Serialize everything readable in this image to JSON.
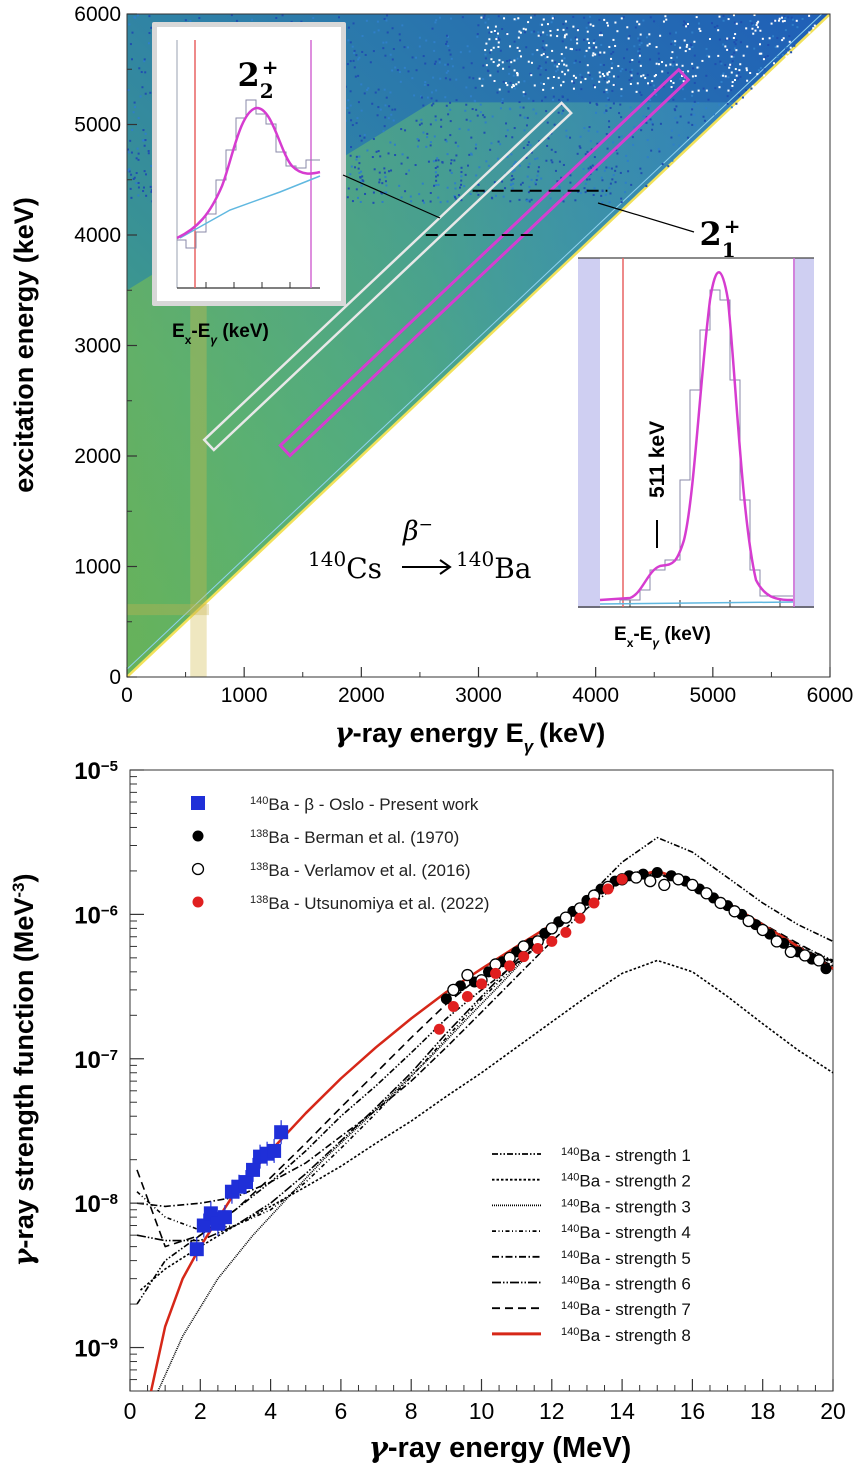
{
  "chart_data": [
    {
      "type": "heatmap",
      "xlabel": "γ-ray energy E",
      "xlabel_sub": "γ",
      "xlabel_unit": "(keV)",
      "ylabel": "excitation energy (keV)",
      "xlim": [
        0,
        6000
      ],
      "ylim": [
        0,
        6000
      ],
      "xticks": [
        "0",
        "1000",
        "2000",
        "3000",
        "4000",
        "5000",
        "6000"
      ],
      "yticks": [
        "0",
        "1000",
        "2000",
        "3000",
        "4000",
        "5000",
        "6000"
      ],
      "gates": [
        {
          "name": "2_2+ gate",
          "color": "#e8e8e8",
          "from": [
            700,
            2100
          ],
          "to": [
            3750,
            5150
          ]
        },
        {
          "name": "2_1+ gate",
          "color": "#d43fd0",
          "from": [
            1350,
            2050
          ],
          "to": [
            4750,
            5450
          ]
        }
      ],
      "dashed_lines": [
        {
          "x": [
            2550,
            3500
          ],
          "y": 4000
        },
        {
          "x": [
            2950,
            4100
          ],
          "y": 4400
        }
      ],
      "reaction": {
        "parent_mass": "140",
        "parent": "Cs",
        "decay": "β",
        "decay_sign": "−",
        "daughter_mass": "140",
        "daughter": "Ba"
      },
      "insets": [
        {
          "label_main": "2",
          "label_sub": "2",
          "label_sup": "+",
          "xlabel_a": "E",
          "xlabel_a_sub": "x",
          "xlabel_b": "-E",
          "xlabel_b_sub": "γ",
          "xlabel_unit": " (keV)"
        },
        {
          "label_main": "2",
          "label_sub": "1",
          "label_sup": "+",
          "xlabel_a": "E",
          "xlabel_a_sub": "x",
          "xlabel_b": "-E",
          "xlabel_b_sub": "γ",
          "xlabel_unit": " (keV)",
          "annotation": "511 keV"
        }
      ]
    },
    {
      "type": "scatter",
      "title": "",
      "xlabel": "γ-ray energy (MeV)",
      "ylabel": "γ-ray strength function (MeV",
      "ylabel_sup": "-3",
      "ylabel_end": ")",
      "xlim": [
        0,
        20
      ],
      "ylim": [
        5e-10,
        1e-05
      ],
      "yscale": "log",
      "xticks": [
        "0",
        "2",
        "4",
        "6",
        "8",
        "10",
        "12",
        "14",
        "16",
        "18",
        "20"
      ],
      "yticks": [
        {
          "base": "10",
          "exp": "−5",
          "value": 1e-05
        },
        {
          "base": "10",
          "exp": "−6",
          "value": 1e-06
        },
        {
          "base": "10",
          "exp": "−7",
          "value": 1e-07
        },
        {
          "base": "10",
          "exp": "−8",
          "value": 1e-08
        },
        {
          "base": "10",
          "exp": "−9",
          "value": 1e-09
        }
      ],
      "legend_points": [
        {
          "mass": "140",
          "text": "Ba - β - Oslo - Present work",
          "color": "#1f2fd8",
          "marker": "square"
        },
        {
          "mass": "138",
          "text": "Ba - Berman et al. (1970)",
          "color": "#000000",
          "marker": "circle"
        },
        {
          "mass": "138",
          "text": "Ba - Verlamov et al. (2016)",
          "color": "#000000",
          "marker": "open-circle"
        },
        {
          "mass": "138",
          "text": "Ba - Utsunomiya et al. (2022)",
          "color": "#e02020",
          "marker": "circle"
        }
      ],
      "legend_lines": [
        {
          "mass": "140",
          "text": "Ba - strength 1",
          "dash": "6,2,1.5,2,1.5,2",
          "color": "#000000"
        },
        {
          "mass": "140",
          "text": "Ba - strength 2",
          "dash": "2.5,2",
          "color": "#000000"
        },
        {
          "mass": "140",
          "text": "Ba - strength 3",
          "dash": "1,1",
          "color": "#000000"
        },
        {
          "mass": "140",
          "text": "Ba - strength 4",
          "dash": "4,2.5,1,2.5,1,2.5",
          "color": "#000000"
        },
        {
          "mass": "140",
          "text": "Ba - strength 5",
          "dash": "7,2.5,1.5,2.5",
          "color": "#000000"
        },
        {
          "mass": "140",
          "text": "Ba - strength 6",
          "dash": "9,2,1.5,2,1.5,2",
          "color": "#000000"
        },
        {
          "mass": "140",
          "text": "Ba - strength 7",
          "dash": "8,5",
          "color": "#000000"
        },
        {
          "mass": "140",
          "text": "Ba - strength 8",
          "dash": "",
          "color": "#d62718"
        }
      ],
      "series": [
        {
          "name": "140Ba - β - Oslo - Present work",
          "x": [
            1.9,
            2.1,
            2.3,
            2.5,
            2.7,
            2.9,
            3.1,
            3.3,
            3.5,
            3.7,
            3.9,
            4.1,
            4.3
          ],
          "y": [
            4.8e-09,
            7e-09,
            8.5e-09,
            7.2e-09,
            8e-09,
            1.2e-08,
            1.3e-08,
            1.4e-08,
            1.7e-08,
            2.1e-08,
            2.2e-08,
            2.3e-08,
            3.1e-08
          ]
        },
        {
          "name": "138Ba - Berman et al. (1970)",
          "x": [
            9.0,
            9.4,
            9.8,
            10.2,
            10.6,
            11.0,
            11.4,
            11.8,
            12.2,
            12.6,
            13.0,
            13.4,
            13.8,
            14.2,
            14.6,
            15.0,
            15.4,
            15.8,
            16.2,
            16.6,
            17.0,
            17.4,
            17.8,
            18.2,
            18.6,
            19.0,
            19.4,
            19.8
          ],
          "y": [
            2.6e-07,
            3.2e-07,
            3.4e-07,
            4e-07,
            4.7e-07,
            5.5e-07,
            6.3e-07,
            7.4e-07,
            8.9e-07,
            1.05e-06,
            1.25e-06,
            1.5e-06,
            1.7e-06,
            1.85e-06,
            1.9e-06,
            1.95e-06,
            1.85e-06,
            1.7e-06,
            1.5e-06,
            1.3e-06,
            1.15e-06,
            1e-06,
            8.5e-07,
            7.3e-07,
            6.3e-07,
            5.5e-07,
            4.9e-07,
            4.2e-07
          ]
        },
        {
          "name": "138Ba - Verlamov et al. (2016)",
          "x": [
            9.2,
            9.6,
            10.0,
            10.4,
            10.8,
            11.2,
            11.6,
            12.0,
            12.4,
            12.8,
            13.2,
            13.6,
            14.0,
            14.4,
            14.8,
            15.2,
            15.6,
            16.0,
            16.4,
            16.8,
            17.2,
            17.6,
            18.0,
            18.4,
            18.8,
            19.2,
            19.6
          ],
          "y": [
            3e-07,
            3.8e-07,
            3.5e-07,
            4.5e-07,
            5e-07,
            6e-07,
            6.5e-07,
            8e-07,
            9.5e-07,
            1.1e-06,
            1.35e-06,
            1.55e-06,
            1.75e-06,
            1.8e-06,
            1.7e-06,
            1.6e-06,
            1.75e-06,
            1.6e-06,
            1.4e-06,
            1.2e-06,
            1.05e-06,
            9e-07,
            7.8e-07,
            6.5e-07,
            5.5e-07,
            5.2e-07,
            4.8e-07
          ]
        },
        {
          "name": "138Ba - Utsunomiya et al. (2022)",
          "x": [
            8.8,
            9.2,
            9.6,
            10.0,
            10.4,
            10.8,
            11.2,
            11.6,
            12.0,
            12.4,
            12.8,
            13.2,
            13.6,
            14.0
          ],
          "y": [
            1.6e-07,
            2.3e-07,
            2.7e-07,
            3.3e-07,
            3.9e-07,
            4.4e-07,
            5.1e-07,
            5.8e-07,
            6.5e-07,
            7.5e-07,
            9.4e-07,
            1.2e-06,
            1.5e-06,
            1.75e-06
          ]
        }
      ],
      "models": [
        {
          "name": "140Ba - strength 1",
          "x": [
            0.2,
            1,
            2,
            3,
            4,
            5,
            6,
            7,
            8,
            9,
            10,
            11,
            12,
            13,
            14,
            15,
            16,
            17,
            18,
            19,
            20
          ],
          "y": [
            2e-09,
            4e-09,
            6e-09,
            9e-09,
            1.4e-08,
            2.3e-08,
            4e-08,
            6.5e-08,
            1.1e-07,
            1.9e-07,
            3e-07,
            4.6e-07,
            7.5e-07,
            1.3e-06,
            2.3e-06,
            3.4e-06,
            2.7e-06,
            1.8e-06,
            1.2e-06,
            8.5e-07,
            6.5e-07
          ]
        },
        {
          "name": "140Ba - strength 2",
          "x": [
            0.3,
            1,
            2,
            3,
            4,
            5,
            6,
            7,
            8,
            9,
            10,
            11,
            12,
            13,
            14,
            15,
            16,
            17,
            18,
            19,
            20
          ],
          "y": [
            2.5e-09,
            3.5e-09,
            5e-09,
            7e-09,
            9.5e-09,
            1.3e-08,
            1.8e-08,
            2.6e-08,
            3.7e-08,
            5.5e-08,
            8e-08,
            1.2e-07,
            1.8e-07,
            2.7e-07,
            3.9e-07,
            4.8e-07,
            4e-07,
            2.7e-07,
            1.75e-07,
            1.15e-07,
            8e-08
          ]
        },
        {
          "name": "140Ba - strength 3",
          "x": [
            0.8,
            1.5,
            2.5,
            3.5,
            4.5,
            5.5,
            6.5,
            7.5,
            8.5,
            9.5,
            10.5,
            11.5,
            12.5,
            13.5,
            14.5,
            15.5,
            16.5,
            17.5,
            18.5,
            19.5,
            20
          ],
          "y": [
            5e-10,
            1.2e-09,
            3e-09,
            6e-09,
            1.1e-08,
            2e-08,
            3.4e-08,
            5.8e-08,
            1e-07,
            1.8e-07,
            3.2e-07,
            5.8e-07,
            9.5e-07,
            1.5e-06,
            2e-06,
            1.8e-06,
            1.35e-06,
            9.8e-07,
            7e-07,
            5e-07,
            4.3e-07
          ]
        },
        {
          "name": "140Ba - strength 4",
          "x": [
            0.2,
            1,
            2,
            3,
            4,
            5,
            6,
            7,
            8,
            9,
            10,
            11,
            12,
            13,
            14,
            15,
            16,
            17,
            18,
            19,
            20
          ],
          "y": [
            1.2e-08,
            8e-09,
            6.5e-09,
            7e-09,
            9e-09,
            1.4e-08,
            2.4e-08,
            4.2e-08,
            7.5e-08,
            1.4e-07,
            2.6e-07,
            4.5e-07,
            7.5e-07,
            1.2e-06,
            1.75e-06,
            2e-06,
            1.65e-06,
            1.2e-06,
            8.5e-07,
            6.2e-07,
            4.8e-07
          ]
        },
        {
          "name": "140Ba - strength 5",
          "x": [
            0.2,
            1,
            2,
            3,
            4,
            5,
            6,
            7,
            8,
            9,
            10,
            11,
            12,
            13,
            14,
            15,
            16,
            17,
            18,
            19,
            20
          ],
          "y": [
            1e-08,
            9.5e-09,
            1e-08,
            1.1e-08,
            1.4e-08,
            1.9e-08,
            2.9e-08,
            4.4e-08,
            7e-08,
            1.2e-07,
            2.1e-07,
            3.7e-07,
            6.5e-07,
            1.1e-06,
            1.7e-06,
            1.9e-06,
            1.6e-06,
            1.2e-06,
            8.5e-07,
            6e-07,
            4.6e-07
          ]
        },
        {
          "name": "140Ba - strength 6",
          "x": [
            0.2,
            1,
            2,
            3,
            4,
            5,
            6,
            7,
            8,
            9,
            10,
            11,
            12,
            13,
            14,
            15,
            16,
            17,
            18,
            19,
            20
          ],
          "y": [
            6e-09,
            5.5e-09,
            5.5e-09,
            7e-09,
            1e-08,
            1.6e-08,
            2.7e-08,
            4.6e-08,
            8e-08,
            1.5e-07,
            2.7e-07,
            4.8e-07,
            8e-07,
            1.25e-06,
            1.75e-06,
            1.95e-06,
            1.6e-06,
            1.15e-06,
            8e-07,
            5.8e-07,
            4.4e-07
          ]
        },
        {
          "name": "140Ba - strength 7",
          "x": [
            0.2,
            1,
            2,
            3,
            4,
            5,
            6,
            7,
            8,
            9,
            10,
            11,
            12,
            13,
            14,
            15,
            16,
            17,
            18,
            19,
            20
          ],
          "y": [
            1.7e-08,
            5e-09,
            6e-09,
            9e-09,
            1.5e-08,
            2.6e-08,
            4.6e-08,
            8e-08,
            1.4e-07,
            2.4e-07,
            3.8e-07,
            5.8e-07,
            8.6e-07,
            1.25e-06,
            1.7e-06,
            1.9e-06,
            1.6e-06,
            1.2e-06,
            8.6e-07,
            6.3e-07,
            4.7e-07
          ]
        },
        {
          "name": "140Ba - strength 8",
          "x": [
            0.6,
            1,
            1.5,
            2,
            3,
            4,
            5,
            6,
            7,
            8,
            9,
            10,
            11,
            12,
            13,
            14,
            15,
            16,
            17,
            18,
            19,
            20
          ],
          "y": [
            5e-10,
            1.4e-09,
            3e-09,
            5e-09,
            1.2e-08,
            2.3e-08,
            4.2e-08,
            7.3e-08,
            1.2e-07,
            1.9e-07,
            2.9e-07,
            4.2e-07,
            6e-07,
            8.5e-07,
            1.25e-06,
            1.75e-06,
            2e-06,
            1.65e-06,
            1.2e-06,
            8.5e-07,
            6e-07,
            4.2e-07
          ]
        }
      ]
    }
  ]
}
